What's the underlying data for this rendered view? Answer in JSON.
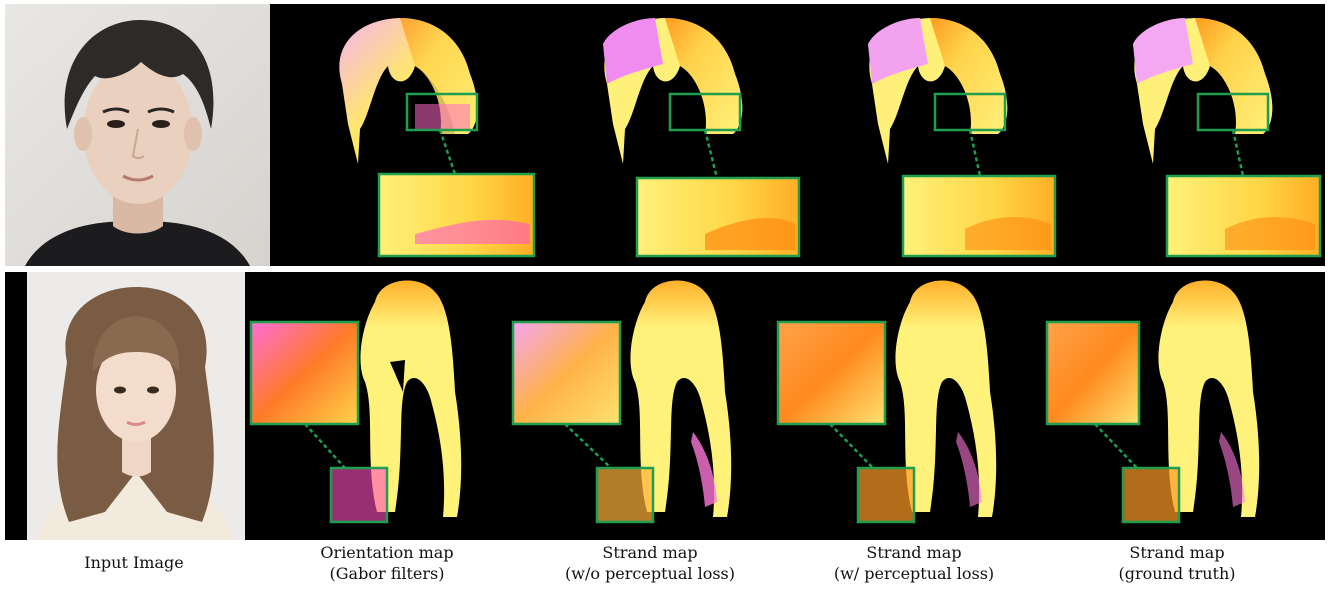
{
  "figure": {
    "row_top": {
      "photo": "young man with dark wavy hair, front-facing portrait on light background",
      "panels": [
        "Gabor orientation map",
        "strand map without perceptual loss",
        "strand map with perceptual loss",
        "strand map ground truth"
      ]
    },
    "row_bottom": {
      "photo": "young woman with long light-brown layered hair and bangs, cream sweater",
      "panels": [
        "Gabor orientation map",
        "strand map without perceptual loss",
        "strand map with perceptual loss",
        "strand map ground truth"
      ]
    },
    "zoom_box_color": "#1e9e4e"
  },
  "captions": [
    {
      "line1": "Input Image",
      "line2": ""
    },
    {
      "line1": "Orientation map",
      "line2": "(Gabor filters)"
    },
    {
      "line1": "Strand map",
      "line2": "(w/o perceptual loss)"
    },
    {
      "line1": "Strand map",
      "line2": "(w/ perceptual loss)"
    },
    {
      "line1": "Strand map",
      "line2": "(ground truth)"
    }
  ]
}
